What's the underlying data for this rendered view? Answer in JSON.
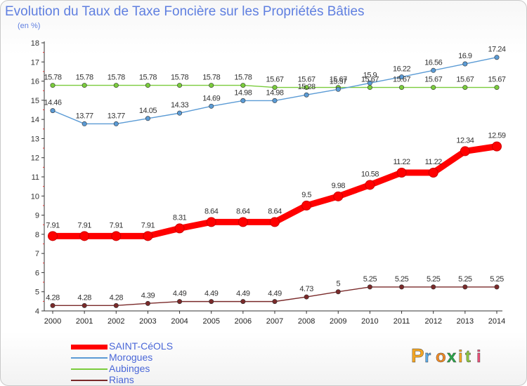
{
  "title": "Evolution du Taux de Taxe Foncière sur les Propriétés Bâties",
  "subtitle": "(en %)",
  "logo_text": "Proxiti",
  "chart_data": {
    "type": "line",
    "title": "Evolution du Taux de Taxe Foncière sur les Propriétés Bâties",
    "subtitle": "(en %)",
    "x": [
      2000,
      2001,
      2002,
      2003,
      2004,
      2005,
      2006,
      2007,
      2008,
      2009,
      2010,
      2011,
      2012,
      2013,
      2014
    ],
    "ylim": [
      4,
      18
    ],
    "yticks": [
      4,
      5,
      6,
      7,
      8,
      9,
      10,
      11,
      12,
      13,
      14,
      15,
      16,
      17,
      18
    ],
    "grid": false,
    "legend": "bottom-left",
    "series": [
      {
        "name": "SAINT-CéOLS",
        "color": "#ff0000",
        "values": [
          7.91,
          7.91,
          7.91,
          7.91,
          8.31,
          8.64,
          8.64,
          8.64,
          9.5,
          9.98,
          10.58,
          11.22,
          11.22,
          12.34,
          12.59
        ],
        "labels": [
          "7.91",
          "7.91",
          "7.91",
          "7.91",
          "8.31",
          "8.64",
          "8.64",
          "8.64",
          "9.5",
          "9.98",
          "10.58",
          "11.22",
          "11.22",
          "12.34",
          "12.59"
        ]
      },
      {
        "name": "Morogues",
        "color": "#5b9bd5",
        "values": [
          14.46,
          13.77,
          13.77,
          14.05,
          14.33,
          14.69,
          14.98,
          14.98,
          15.28,
          15.57,
          15.9,
          16.22,
          16.56,
          16.9,
          17.24
        ],
        "labels": [
          "14.46",
          "13.77",
          "13.77",
          "14.05",
          "14.33",
          "14.69",
          "14.98",
          "14.98",
          "15.28",
          "15.57",
          "15.9",
          "16.22",
          "16.56",
          "16.9",
          "17.24"
        ]
      },
      {
        "name": "Aubinges",
        "color": "#7acc3c",
        "values": [
          15.78,
          15.78,
          15.78,
          15.78,
          15.78,
          15.78,
          15.78,
          15.67,
          15.67,
          15.67,
          15.67,
          15.67,
          15.67,
          15.67,
          15.67
        ],
        "labels": [
          "15.78",
          "15.78",
          "15.78",
          "15.78",
          "15.78",
          "15.78",
          "15.78",
          "15.67",
          "15.67",
          "15.67",
          "15.67",
          "15.67",
          "15.67",
          "15.67",
          "15.67"
        ]
      },
      {
        "name": "Rians",
        "color": "#7a2a2a",
        "values": [
          4.28,
          4.28,
          4.28,
          4.39,
          4.49,
          4.49,
          4.49,
          4.49,
          4.73,
          5,
          5.25,
          5.25,
          5.25,
          5.25,
          5.25
        ],
        "labels": [
          "4.28",
          "4.28",
          "4.28",
          "4.39",
          "4.49",
          "4.49",
          "4.49",
          "4.49",
          "4.73",
          "5",
          "5.25",
          "5.25",
          "5.25",
          "5.25",
          "5.25"
        ]
      }
    ]
  }
}
